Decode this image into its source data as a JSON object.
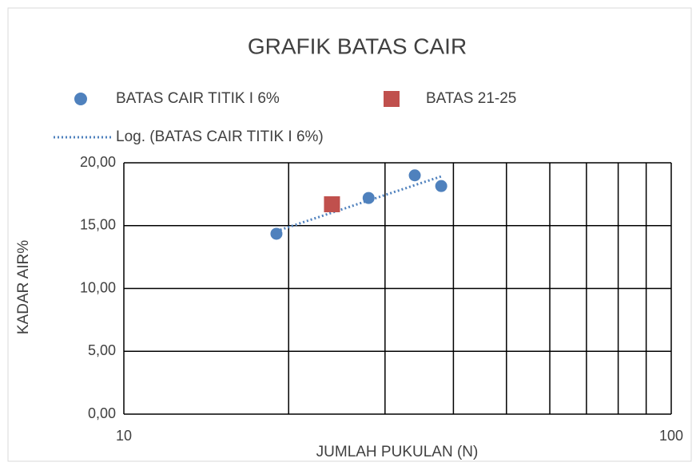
{
  "chart_data": {
    "type": "scatter",
    "title": "GRAFIK BATAS CAIR",
    "x_label": "JUMLAH PUKULAN (N)",
    "y_label": "KADAR AIR%",
    "x_log": true,
    "xlim": [
      10,
      100
    ],
    "xticks": [
      10,
      100
    ],
    "x_minor_grid": [
      20,
      30,
      40,
      50,
      60,
      70,
      80,
      90
    ],
    "ylim": [
      0,
      20
    ],
    "yticks": [
      {
        "value": 0,
        "label": "0,00"
      },
      {
        "value": 5,
        "label": "5,00"
      },
      {
        "value": 10,
        "label": "10,00"
      },
      {
        "value": 15,
        "label": "15,00"
      },
      {
        "value": 20,
        "label": "20,00"
      }
    ],
    "grid": true,
    "legend": "top",
    "series": [
      {
        "name": "BATAS CAIR TITIK I 6%",
        "color": "#4f81bd",
        "marker": "circle",
        "x": [
          19,
          28,
          34,
          38
        ],
        "values": [
          14.35,
          17.2,
          19.0,
          18.15
        ]
      },
      {
        "name": "BATAS 21-25",
        "color": "#c0504d",
        "marker": "square",
        "x": [
          24
        ],
        "values": [
          16.7
        ]
      }
    ],
    "trendline": {
      "name": "Log. (BATAS CAIR TITIK I 6%)",
      "kind": "log",
      "series": 0,
      "color": "#4f81bd"
    }
  }
}
